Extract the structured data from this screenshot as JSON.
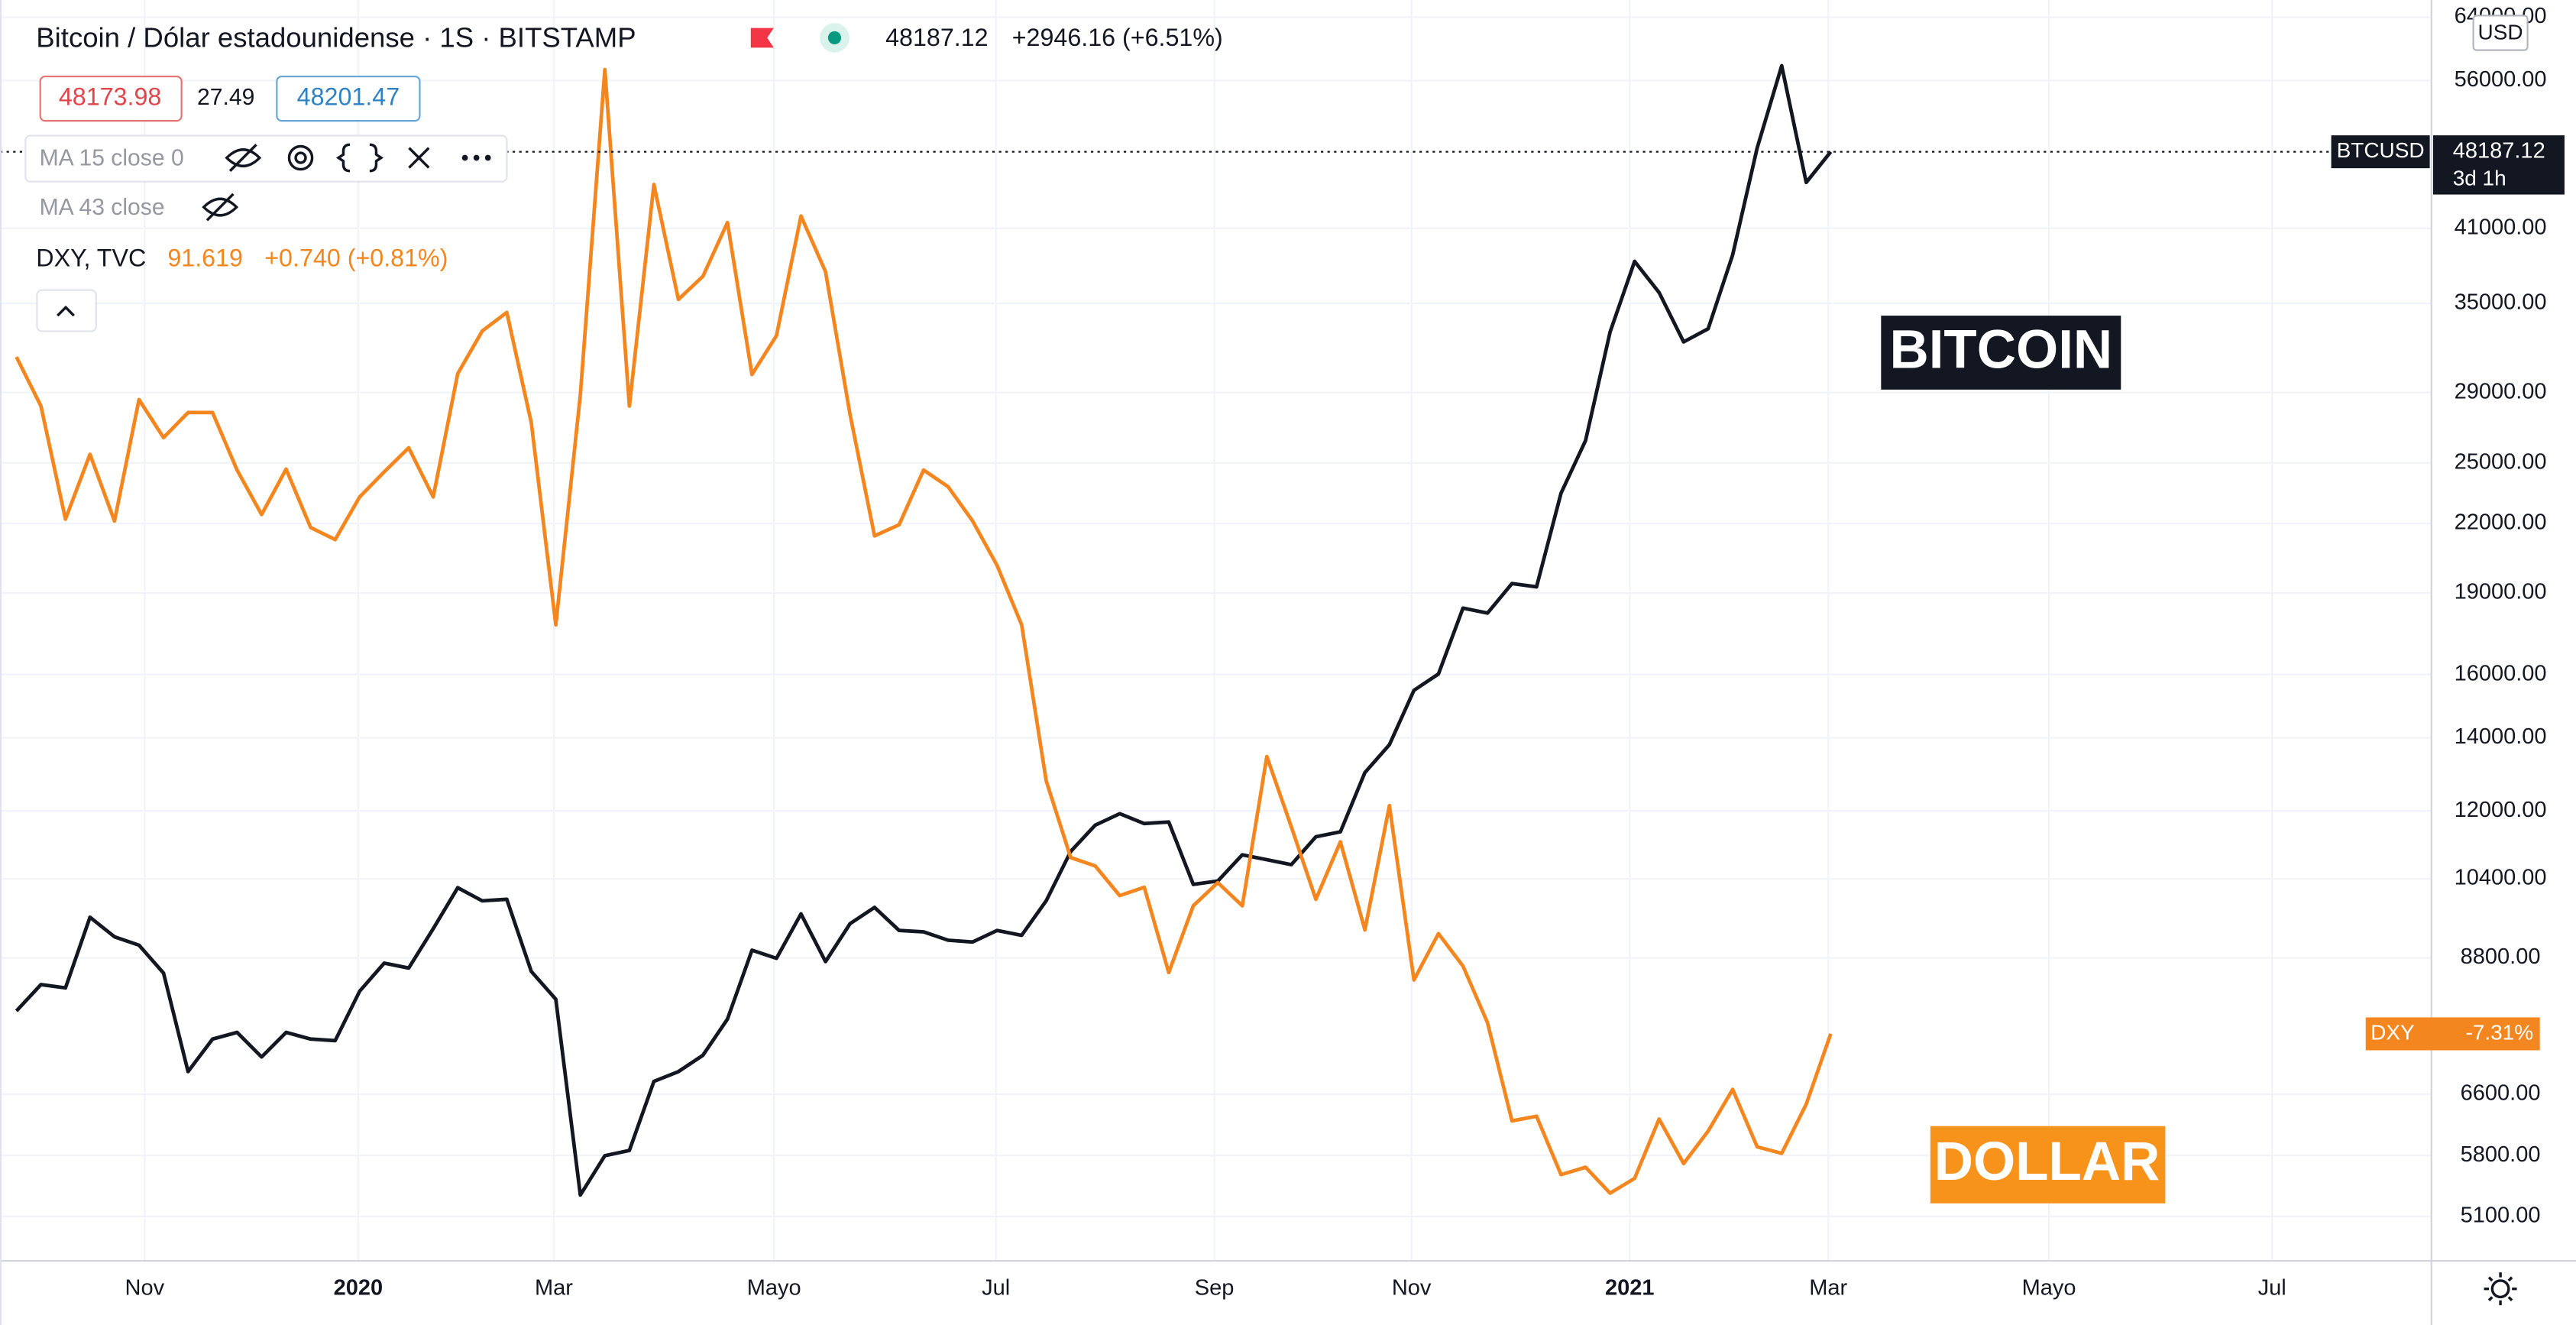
{
  "header": {
    "symbol_title": "Bitcoin / Dólar estadounidense · 1S · BITSTAMP",
    "last_price": "48187.12",
    "change": "+2946.16 (+6.51%)",
    "bid": "48173.98",
    "spread": "27.49",
    "ask": "48201.47",
    "ma1": "MA 15 close 0",
    "ma2": "MA 43 close",
    "compare_symbol": "DXY, TVC",
    "compare_price": "91.619",
    "compare_change": "+0.740 (+0.81%)",
    "countdown": "3d 1h",
    "currency": "USD",
    "dxy_change_label": "-7.31%"
  },
  "chart_data": {
    "type": "line",
    "xlim": [
      -0.67,
      98.5
    ],
    "xticks": [
      {
        "value": 5.23,
        "label": "Nov"
      },
      {
        "value": 13.94,
        "label": "2020"
      },
      {
        "value": 21.92,
        "label": "Mar"
      },
      {
        "value": 30.9,
        "label": "Mayo"
      },
      {
        "value": 39.95,
        "label": "Jul"
      },
      {
        "value": 48.86,
        "label": "Sep"
      },
      {
        "value": 56.9,
        "label": "Nov"
      },
      {
        "value": 65.8,
        "label": "2021"
      },
      {
        "value": 73.9,
        "label": "Mar"
      },
      {
        "value": 82.9,
        "label": "Mayo"
      },
      {
        "value": 92.0,
        "label": "Jul"
      }
    ],
    "ylim": [
      4644,
      66370
    ],
    "yscale": "log",
    "yticks": [
      {
        "value": 64000,
        "label": "64000.00"
      },
      {
        "value": 56000,
        "label": "56000.00"
      },
      {
        "value": 41000,
        "label": "41000.00"
      },
      {
        "value": 35000,
        "label": "35000.00"
      },
      {
        "value": 29000,
        "label": "29000.00"
      },
      {
        "value": 25000,
        "label": "25000.00"
      },
      {
        "value": 22000,
        "label": "22000.00"
      },
      {
        "value": 19000,
        "label": "19000.00"
      },
      {
        "value": 16000,
        "label": "16000.00"
      },
      {
        "value": 14000,
        "label": "14000.00"
      },
      {
        "value": 12000,
        "label": "12000.00"
      },
      {
        "value": 10400,
        "label": "10400.00"
      },
      {
        "value": 8800,
        "label": "8800.00"
      },
      {
        "value": 6600,
        "label": "6600.00"
      },
      {
        "value": 5800,
        "label": "5800.00"
      },
      {
        "value": 5100,
        "label": "5100.00"
      }
    ],
    "y2lim": [
      89.17,
      102.77
    ],
    "grid": true,
    "series": [
      {
        "name": "BTCUSD",
        "color": "#131722",
        "annotation": "BITCOIN",
        "values": [
          7868,
          8318,
          8260,
          9587,
          9200,
          9039,
          8522,
          6923,
          7415,
          7520,
          7140,
          7520,
          7415,
          7390,
          8203,
          8703,
          8613,
          9358,
          10203,
          9925,
          9958,
          8551,
          8065,
          5336,
          5798,
          5862,
          6781,
          6923,
          7166,
          7733,
          8943,
          8792,
          9655,
          8731,
          9458,
          9789,
          9324,
          9296,
          9134,
          9100,
          9324,
          9229,
          9925,
          11015,
          11642,
          11928,
          11682,
          11721,
          10276,
          10349,
          10937,
          10825,
          10713,
          11362,
          11480,
          13009,
          13798,
          15473,
          16016,
          18402,
          18211,
          19382,
          19247,
          23453,
          26208,
          32945,
          38242,
          35806,
          32267,
          33174,
          38774,
          48580,
          57775,
          45170,
          48187.12
        ]
      },
      {
        "name": "DXY",
        "color": "#f4861f",
        "axis": "y2",
        "annotation": "DOLLAR",
        "values": [
          98.92,
          98.39,
          97.17,
          97.87,
          97.15,
          98.46,
          98.05,
          98.32,
          98.32,
          97.7,
          97.22,
          97.71,
          97.08,
          96.95,
          97.41,
          97.68,
          97.94,
          97.41,
          98.74,
          99.2,
          99.4,
          98.21,
          96.03,
          98.51,
          102.02,
          98.39,
          100.78,
          99.54,
          99.79,
          100.37,
          98.73,
          99.15,
          100.44,
          99.84,
          98.3,
          96.99,
          97.11,
          97.7,
          97.52,
          97.15,
          96.67,
          96.03,
          94.35,
          93.52,
          93.43,
          93.11,
          93.2,
          92.28,
          93.0,
          93.25,
          93.0,
          94.61,
          93.85,
          93.07,
          93.69,
          92.74,
          94.08,
          92.2,
          92.7,
          92.35,
          91.74,
          90.68,
          90.73,
          90.1,
          90.18,
          89.9,
          90.06,
          90.7,
          90.22,
          90.57,
          91.02,
          90.4,
          90.33,
          90.86,
          91.619
        ]
      }
    ]
  }
}
